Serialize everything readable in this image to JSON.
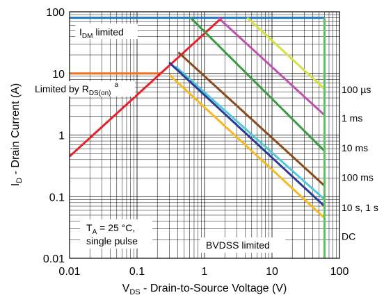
{
  "chart_data": {
    "type": "line",
    "xscale": "log",
    "yscale": "log",
    "xlim": [
      0.01,
      100
    ],
    "ylim": [
      0.01,
      100
    ],
    "grid": true,
    "xlabel": {
      "pre": "V",
      "sub": "DS",
      "post": " - Drain-to-Source Voltage (V)"
    },
    "ylabel": {
      "pre": "I",
      "sub": "D",
      "post": " - Drain Current (A)"
    },
    "x_ticks": [
      "0.01",
      "0.1",
      "1",
      "10",
      "100"
    ],
    "y_ticks": [
      "0.01",
      "0.1",
      "1",
      "10",
      "100"
    ],
    "annotations": {
      "idm": {
        "pre": "I",
        "sub": "DM",
        "post": " limited"
      },
      "rds": {
        "pre": "Limited by R",
        "sub": "DS(on)",
        "sup": "a"
      },
      "ta_line1": "T",
      "ta_sub": "A",
      "ta_rest": " = 25 °C,",
      "ta_line2": "single pulse",
      "bvdss": "BVDSS limited"
    },
    "series": [
      {
        "label": "",
        "color": "#1f78c8",
        "points": [
          [
            0.01,
            80
          ],
          [
            60,
            80
          ]
        ]
      },
      {
        "label": "",
        "color": "#f07020",
        "points": [
          [
            0.01,
            10
          ],
          [
            0.22,
            10
          ]
        ]
      },
      {
        "label": "",
        "color": "#e8202a",
        "points": [
          [
            0.01,
            0.45
          ],
          [
            1.8,
            80
          ]
        ]
      },
      {
        "label": "100 µs",
        "color": "#d8e040",
        "points": [
          [
            4.3,
            80
          ],
          [
            60,
            5.6
          ]
        ]
      },
      {
        "label": "1 ms",
        "color": "#c050b0",
        "points": [
          [
            1.6,
            80
          ],
          [
            60,
            2.1
          ]
        ]
      },
      {
        "label": "10 ms",
        "color": "#3a9a40",
        "points": [
          [
            0.62,
            80
          ],
          [
            60,
            0.55
          ]
        ]
      },
      {
        "label": "100 ms",
        "color": "#8a4a1a",
        "points": [
          [
            0.41,
            22
          ],
          [
            60,
            0.15
          ]
        ]
      },
      {
        "label": "10 s, 1 s",
        "color": "#50c8d8",
        "points": [
          [
            0.37,
            13
          ],
          [
            60,
            0.09
          ]
        ]
      },
      {
        "label": "",
        "color": "#2a3a98",
        "points": [
          [
            0.3,
            15
          ],
          [
            60,
            0.07
          ]
        ]
      },
      {
        "label": "DC",
        "color": "#f8b820",
        "points": [
          [
            0.3,
            9.5
          ],
          [
            60,
            0.045
          ]
        ]
      },
      {
        "label": "",
        "color": "#60c060",
        "points": [
          [
            60,
            0.01
          ],
          [
            60,
            80
          ]
        ]
      }
    ],
    "series_labels": [
      {
        "text": "100 µs",
        "y": 5.3
      },
      {
        "text": "1 ms",
        "y": 1.85
      },
      {
        "text": "10 ms",
        "y": 0.6
      },
      {
        "text": "100 ms",
        "y": 0.2
      },
      {
        "text": "10 s, 1 s",
        "y": 0.065
      },
      {
        "text": "DC",
        "y": 0.022
      }
    ]
  }
}
